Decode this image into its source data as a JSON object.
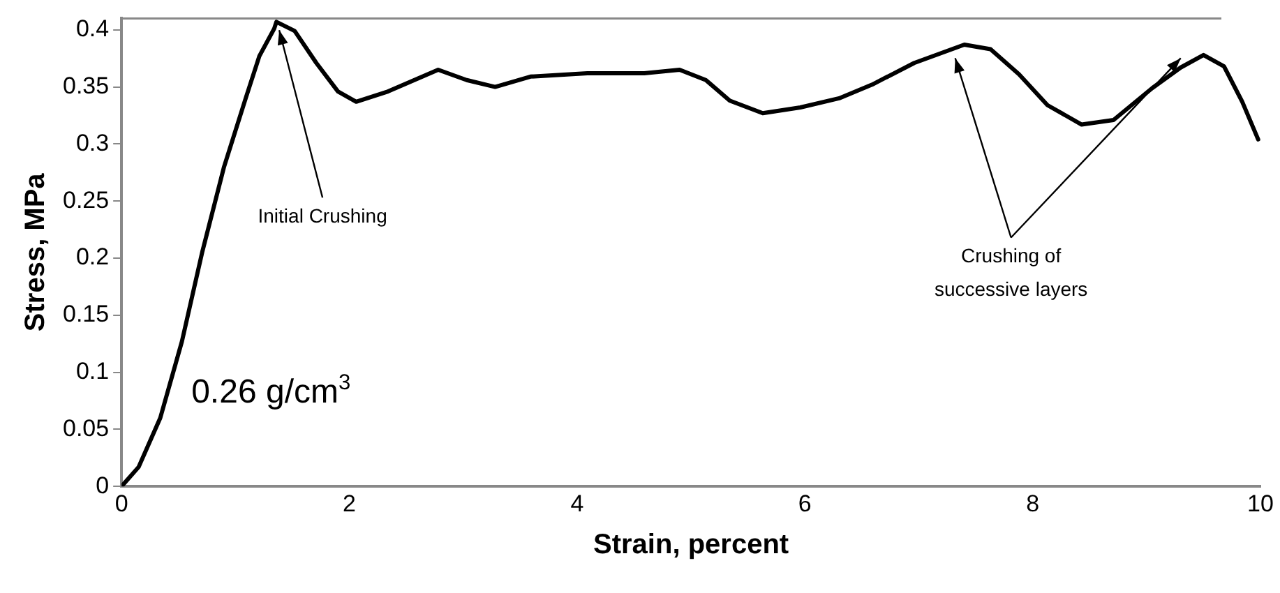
{
  "chart_data": {
    "type": "line",
    "xlabel": "Strain, percent",
    "ylabel": "Stress, MPa",
    "xlim": [
      0,
      10
    ],
    "xticks": [
      0,
      2,
      4,
      6,
      8,
      10
    ],
    "ylim": [
      0,
      0.41
    ],
    "yticks": [
      0,
      0.05,
      0.1,
      0.15,
      0.2,
      0.25,
      0.3,
      0.35,
      0.4
    ],
    "grid": false,
    "legend": false,
    "marker": "none",
    "line_style": "solid",
    "annotations": [
      {
        "text": "Initial Crushing",
        "x": 1.36,
        "y": 0.407
      },
      "Crushing of successive layers",
      "0.26 g/cm$^{3}$"
    ],
    "series": [
      {
        "color": "#000000",
        "x": [
          0,
          0.15,
          0.34,
          0.53,
          0.71,
          0.9,
          1.09,
          1.21,
          1.34,
          1.36,
          1.52,
          1.71,
          1.9,
          2.06,
          2.34,
          2.78,
          3.03,
          3.28,
          3.59,
          4.09,
          4.59,
          4.9,
          5.13,
          5.34,
          5.63,
          5.96,
          6.3,
          6.59,
          6.96,
          7.4,
          7.63,
          7.88,
          8.13,
          8.43,
          8.71,
          9.05,
          9.3,
          9.5,
          9.68,
          9.84,
          9.98
        ],
        "values": [
          0,
          0.017,
          0.06,
          0.127,
          0.206,
          0.28,
          0.34,
          0.377,
          0.401,
          0.407,
          0.399,
          0.371,
          0.346,
          0.337,
          0.346,
          0.365,
          0.356,
          0.35,
          0.359,
          0.362,
          0.362,
          0.365,
          0.356,
          0.338,
          0.327,
          0.332,
          0.34,
          0.352,
          0.371,
          0.387,
          0.383,
          0.361,
          0.334,
          0.317,
          0.321,
          0.349,
          0.367,
          0.378,
          0.368,
          0.337,
          0.304
        ]
      }
    ]
  }
}
